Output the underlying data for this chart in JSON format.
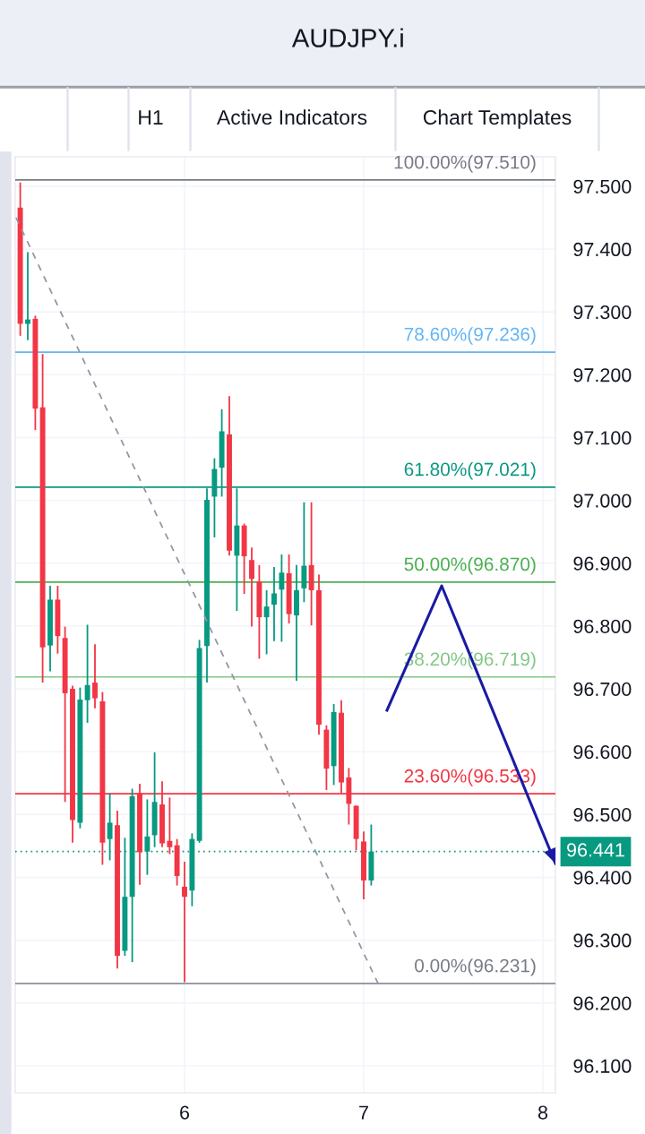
{
  "chart_data": {
    "type": "candlestick",
    "title": "AUDJPY.i",
    "annotations": [
      "H1",
      "Active Indicators",
      "Chart Templates"
    ],
    "x": [
      5.083,
      5.125,
      5.167,
      5.208,
      5.25,
      5.292,
      5.333,
      5.375,
      5.417,
      5.458,
      5.5,
      5.542,
      5.583,
      5.625,
      5.667,
      5.708,
      5.75,
      5.792,
      5.833,
      5.875,
      5.917,
      5.958,
      6.0,
      6.042,
      6.083,
      6.125,
      6.167,
      6.208,
      6.25,
      6.292,
      6.333,
      6.375,
      6.417,
      6.458,
      6.5,
      6.542,
      6.583,
      6.625,
      6.667,
      6.708,
      6.75,
      6.792,
      6.833,
      6.875,
      6.917,
      6.958,
      7.0,
      7.042
    ],
    "ohlc": [
      [
        97.466,
        97.506,
        97.262,
        97.281
      ],
      [
        97.281,
        97.395,
        97.255,
        97.288
      ],
      [
        97.289,
        97.294,
        97.112,
        97.146
      ],
      [
        97.148,
        97.233,
        96.71,
        96.766
      ],
      [
        96.769,
        96.864,
        96.728,
        96.842
      ],
      [
        96.842,
        96.864,
        96.756,
        96.784
      ],
      [
        96.781,
        96.799,
        96.52,
        96.693
      ],
      [
        96.7,
        96.705,
        96.455,
        96.491
      ],
      [
        96.487,
        96.702,
        96.478,
        96.683
      ],
      [
        96.682,
        96.802,
        96.646,
        96.706
      ],
      [
        96.71,
        96.771,
        96.669,
        96.685
      ],
      [
        96.68,
        96.695,
        96.42,
        96.455
      ],
      [
        96.461,
        96.534,
        96.427,
        96.487
      ],
      [
        96.483,
        96.506,
        96.255,
        96.275
      ],
      [
        96.283,
        96.463,
        96.275,
        96.369
      ],
      [
        96.369,
        96.541,
        96.265,
        96.529
      ],
      [
        96.534,
        96.549,
        96.388,
        96.44
      ],
      [
        96.441,
        96.524,
        96.404,
        96.465
      ],
      [
        96.467,
        96.599,
        96.448,
        96.52
      ],
      [
        96.516,
        96.553,
        96.448,
        96.454
      ],
      [
        96.458,
        96.527,
        96.437,
        96.448
      ],
      [
        96.451,
        96.461,
        96.387,
        96.402
      ],
      [
        96.385,
        96.425,
        96.233,
        96.369
      ],
      [
        96.379,
        96.47,
        96.354,
        96.461
      ],
      [
        96.458,
        96.778,
        96.455,
        96.765
      ],
      [
        96.768,
        97.019,
        96.71,
        97.001
      ],
      [
        97.006,
        97.067,
        96.941,
        97.05
      ],
      [
        97.052,
        97.145,
        97.006,
        97.11
      ],
      [
        97.105,
        97.166,
        96.912,
        96.92
      ],
      [
        96.912,
        97.019,
        96.824,
        96.96
      ],
      [
        96.96,
        96.963,
        96.851,
        96.911
      ],
      [
        96.905,
        96.925,
        96.799,
        96.875
      ],
      [
        96.871,
        96.897,
        96.748,
        96.814
      ],
      [
        96.814,
        96.857,
        96.755,
        96.831
      ],
      [
        96.834,
        96.894,
        96.776,
        96.852
      ],
      [
        96.858,
        96.914,
        96.775,
        96.885
      ],
      [
        96.884,
        96.914,
        96.804,
        96.819
      ],
      [
        96.817,
        96.897,
        96.713,
        96.857
      ],
      [
        96.86,
        96.997,
        96.838,
        96.896
      ],
      [
        96.897,
        96.997,
        96.801,
        96.857
      ],
      [
        96.857,
        96.882,
        96.627,
        96.643
      ],
      [
        96.635,
        96.642,
        96.539,
        96.573
      ],
      [
        96.577,
        96.676,
        96.547,
        96.663
      ],
      [
        96.662,
        96.682,
        96.534,
        96.551
      ],
      [
        96.559,
        96.574,
        96.484,
        96.517
      ],
      [
        96.514,
        96.514,
        96.443,
        96.461
      ],
      [
        96.457,
        96.473,
        96.365,
        96.395
      ],
      [
        96.395,
        96.484,
        96.387,
        96.441
      ]
    ],
    "colors": [
      "#f23645",
      "#089981",
      "#f23645",
      "#f23645",
      "#089981",
      "#f23645",
      "#f23645",
      "#f23645",
      "#089981",
      "#089981",
      "#f23645",
      "#f23645",
      "#089981",
      "#f23645",
      "#089981",
      "#089981",
      "#f23645",
      "#089981",
      "#089981",
      "#f23645",
      "#f23645",
      "#f23645",
      "#f23645",
      "#089981",
      "#089981",
      "#089981",
      "#089981",
      "#089981",
      "#f23645",
      "#089981",
      "#f23645",
      "#f23645",
      "#f23645",
      "#089981",
      "#089981",
      "#089981",
      "#f23645",
      "#089981",
      "#089981",
      "#f23645",
      "#f23645",
      "#f23645",
      "#089981",
      "#f23645",
      "#f23645",
      "#f23645",
      "#f23645",
      "#089981"
    ],
    "series": [
      {
        "type": "line",
        "color": "#9598a1",
        "line_style": "dashed",
        "x": [
          5.06,
          7.08
        ],
        "values": [
          97.45,
          96.231
        ]
      },
      {
        "type": "line",
        "color": "#1a1aa6",
        "line_style": "solid",
        "x": [
          7.13,
          7.435,
          8.07
        ],
        "values": [
          96.666,
          96.864,
          96.422
        ]
      }
    ],
    "ref_lines": [
      {
        "axis": "y",
        "value": 97.51,
        "label": "100.00%(97.510)",
        "color": "#787b86",
        "line_style": "solid"
      },
      {
        "axis": "y",
        "value": 97.236,
        "label": "78.60%(97.236)",
        "color": "#64b5f6",
        "line_style": "solid"
      },
      {
        "axis": "y",
        "value": 97.021,
        "label": "61.80%(97.021)",
        "color": "#089981",
        "line_style": "solid"
      },
      {
        "axis": "y",
        "value": 96.87,
        "label": "50.00%(96.870)",
        "color": "#4caf50",
        "line_style": "solid"
      },
      {
        "axis": "y",
        "value": 96.719,
        "label": "38.20%(96.719)",
        "color": "#81c784",
        "line_style": "solid"
      },
      {
        "axis": "y",
        "value": 96.533,
        "label": "23.60%(96.533)",
        "color": "#f23645",
        "line_style": "solid"
      },
      {
        "axis": "y",
        "value": 96.231,
        "label": "0.00%(96.231)",
        "color": "#787b86",
        "line_style": "solid"
      },
      {
        "axis": "y",
        "value": 96.441,
        "label": "96.441",
        "color": "#089981",
        "line_style": "dotted"
      }
    ],
    "xlim": [
      5.055,
      8.07
    ],
    "xticks": [
      6,
      7,
      8
    ],
    "ylim": [
      96.057,
      97.547
    ],
    "yticks": [
      {
        "value": 96.1,
        "label": "96.100"
      },
      {
        "value": 96.2,
        "label": "96.200"
      },
      {
        "value": 96.3,
        "label": "96.300"
      },
      {
        "value": 96.4,
        "label": "96.400"
      },
      {
        "value": 96.5,
        "label": "96.500"
      },
      {
        "value": 96.6,
        "label": "96.600"
      },
      {
        "value": 96.7,
        "label": "96.700"
      },
      {
        "value": 96.8,
        "label": "96.800"
      },
      {
        "value": 96.9,
        "label": "96.900"
      },
      {
        "value": 97.0,
        "label": "97.000"
      },
      {
        "value": 97.1,
        "label": "97.100"
      },
      {
        "value": 97.2,
        "label": "97.200"
      },
      {
        "value": 97.3,
        "label": "97.300"
      },
      {
        "value": 97.4,
        "label": "97.400"
      },
      {
        "value": 97.5,
        "label": "97.500"
      }
    ],
    "grid": true
  }
}
